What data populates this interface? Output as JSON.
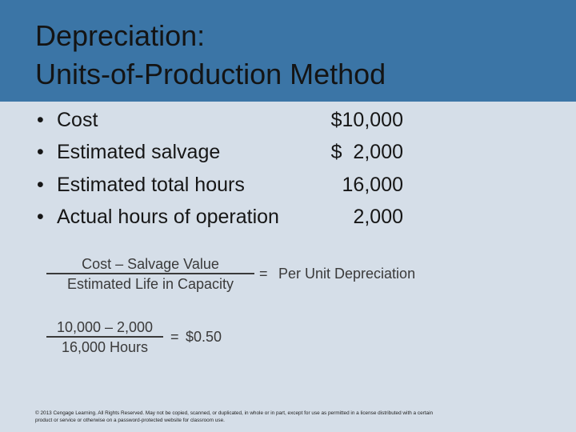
{
  "header": {
    "title": [
      "Depreciation:",
      "Units-of-Production Method"
    ]
  },
  "facts": [
    {
      "label": "Cost",
      "value": "$10,000"
    },
    {
      "label": "Estimated salvage",
      "value": "$  2,000"
    },
    {
      "label": "Estimated total hours",
      "value": "16,000"
    },
    {
      "label": "Actual hours of operation",
      "value": "2,000"
    }
  ],
  "formulas": [
    {
      "numerator": "Cost – Salvage Value",
      "denominator": "Estimated Life in Capacity",
      "equals": "=",
      "result": "Per Unit Depreciation"
    },
    {
      "numerator": "10,000 – 2,000",
      "denominator": "16,000 Hours",
      "equals": "=",
      "result": "$0.50"
    }
  ],
  "footer": [
    "© 2013 Cengage Learning. All Rights Reserved. May not be copied, scanned, or duplicated, in whole or in part, except for use as permitted in a license distributed with a certain",
    "product or service or otherwise on a password-protected website for classroom use."
  ]
}
